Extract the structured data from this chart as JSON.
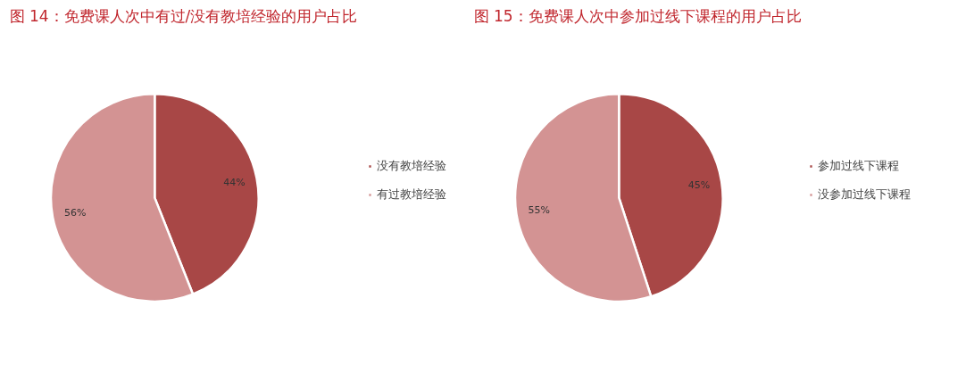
{
  "chart_data": [
    {
      "type": "pie",
      "title": "图 14：免费课人次中有过/没有教培经验的用户占比",
      "categories": [
        "没有教培经验",
        "有过教培经验"
      ],
      "values": [
        44,
        56
      ],
      "colors": [
        "#a84746",
        "#d39393"
      ],
      "value_labels": [
        "44%",
        "56%"
      ],
      "legend": "right"
    },
    {
      "type": "pie",
      "title": "图 15：免费课人次中参加过线下课程的用户占比",
      "categories": [
        "参加过线下课程",
        "没参加过线下课程"
      ],
      "values": [
        45,
        55
      ],
      "colors": [
        "#a84746",
        "#d39393"
      ],
      "value_labels": [
        "45%",
        "55%"
      ],
      "legend": "right"
    }
  ]
}
